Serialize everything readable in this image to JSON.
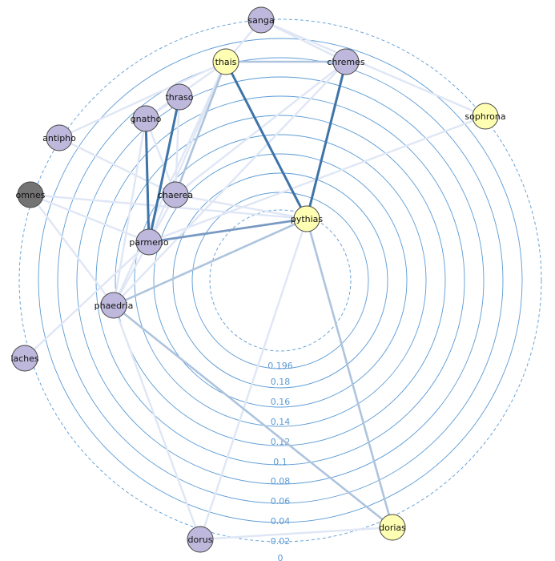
{
  "diagram": {
    "type": "radial-network",
    "ring_labels": [
      "0.196",
      "0.18",
      "0.16",
      "0.14",
      "0.12",
      "0.1",
      "0.08",
      "0.06",
      "0.04",
      "0.02",
      "0"
    ],
    "colors": {
      "ring": "#5b9bd5",
      "node_default": "#bdb8dc",
      "node_highlight": "#ffffb3",
      "node_dark": "#737373"
    },
    "nodes": [
      {
        "id": "sanga",
        "label": "sanga",
        "kind": "default"
      },
      {
        "id": "thais",
        "label": "thais",
        "kind": "highlight"
      },
      {
        "id": "chremes",
        "label": "chremes",
        "kind": "default"
      },
      {
        "id": "thraso",
        "label": "thraso",
        "kind": "default"
      },
      {
        "id": "gnatho",
        "label": "gnatho",
        "kind": "default"
      },
      {
        "id": "sophrona",
        "label": "sophrona",
        "kind": "highlight"
      },
      {
        "id": "antipho",
        "label": "antipho",
        "kind": "default"
      },
      {
        "id": "omnes",
        "label": "omnes",
        "kind": "dark"
      },
      {
        "id": "chaerea",
        "label": "chaerea",
        "kind": "default"
      },
      {
        "id": "pythias",
        "label": "pythias",
        "kind": "highlight"
      },
      {
        "id": "parmeno",
        "label": "parmeno",
        "kind": "default"
      },
      {
        "id": "phaedria",
        "label": "phaedria",
        "kind": "default"
      },
      {
        "id": "laches",
        "label": "laches",
        "kind": "default"
      },
      {
        "id": "dorus",
        "label": "dorus",
        "kind": "default"
      },
      {
        "id": "dorias",
        "label": "dorias",
        "kind": "highlight"
      }
    ],
    "edges": [
      {
        "source": "thais",
        "target": "pythias",
        "strength": "strong"
      },
      {
        "source": "chremes",
        "target": "pythias",
        "strength": "strong"
      },
      {
        "source": "gnatho",
        "target": "parmeno",
        "strength": "strong"
      },
      {
        "source": "thraso",
        "target": "parmeno",
        "strength": "strong"
      },
      {
        "source": "parmeno",
        "target": "pythias",
        "strength": "medium"
      },
      {
        "source": "phaedria",
        "target": "pythias",
        "strength": "light"
      },
      {
        "source": "phaedria",
        "target": "dorias",
        "strength": "light"
      },
      {
        "source": "pythias",
        "target": "dorias",
        "strength": "light"
      },
      {
        "source": "thais",
        "target": "chremes",
        "strength": "light"
      },
      {
        "source": "thais",
        "target": "sanga",
        "strength": "faint"
      },
      {
        "source": "sanga",
        "target": "chremes",
        "strength": "faint"
      },
      {
        "source": "sanga",
        "target": "sophrona",
        "strength": "faint"
      },
      {
        "source": "thais",
        "target": "chaerea",
        "strength": "light"
      },
      {
        "source": "thais",
        "target": "parmeno",
        "strength": "faint"
      },
      {
        "source": "thais",
        "target": "phaedria",
        "strength": "faint"
      },
      {
        "source": "thais",
        "target": "gnatho",
        "strength": "faint"
      },
      {
        "source": "thraso",
        "target": "gnatho",
        "strength": "faint"
      },
      {
        "source": "thraso",
        "target": "chaerea",
        "strength": "faint"
      },
      {
        "source": "chremes",
        "target": "phaedria",
        "strength": "faint"
      },
      {
        "source": "chremes",
        "target": "chaerea",
        "strength": "faint"
      },
      {
        "source": "chaerea",
        "target": "parmeno",
        "strength": "faint"
      },
      {
        "source": "chaerea",
        "target": "pythias",
        "strength": "faint"
      },
      {
        "source": "gnatho",
        "target": "chaerea",
        "strength": "faint"
      },
      {
        "source": "gnatho",
        "target": "phaedria",
        "strength": "faint"
      },
      {
        "source": "antipho",
        "target": "chaerea",
        "strength": "faint"
      },
      {
        "source": "antipho",
        "target": "thais",
        "strength": "faint"
      },
      {
        "source": "omnes",
        "target": "parmeno",
        "strength": "faint"
      },
      {
        "source": "omnes",
        "target": "pythias",
        "strength": "faint"
      },
      {
        "source": "omnes",
        "target": "phaedria",
        "strength": "faint"
      },
      {
        "source": "laches",
        "target": "parmeno",
        "strength": "faint"
      },
      {
        "source": "phaedria",
        "target": "parmeno",
        "strength": "faint"
      },
      {
        "source": "phaedria",
        "target": "dorus",
        "strength": "faint"
      },
      {
        "source": "pythias",
        "target": "dorus",
        "strength": "faint"
      },
      {
        "source": "dorus",
        "target": "dorias",
        "strength": "faint"
      },
      {
        "source": "sophrona",
        "target": "parmeno",
        "strength": "faint"
      }
    ]
  }
}
